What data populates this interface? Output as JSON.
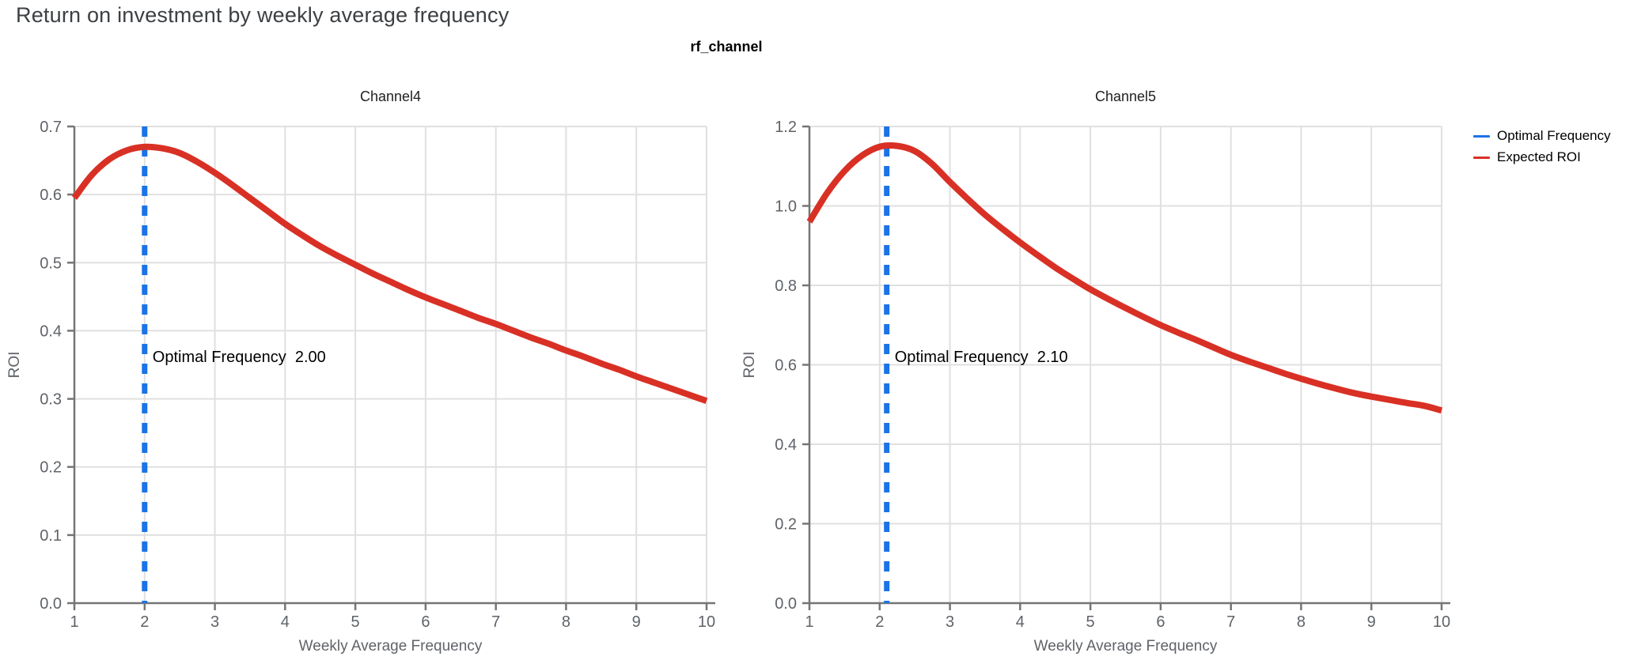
{
  "header": {
    "title": "Return on investment by weekly average frequency",
    "subtitle": "rf_channel"
  },
  "legend": {
    "items": [
      {
        "label": "Optimal Frequency",
        "color": "#1a73e8"
      },
      {
        "label": "Expected ROI",
        "color": "#d93025"
      }
    ]
  },
  "colors": {
    "optimal_line": "#1a73e8",
    "roi_curve": "#d93025",
    "grid": "#e0e0e0",
    "axis": "#757575",
    "tick_text": "#5f6368",
    "title_text": "#3c4043",
    "chart_text": "#202124",
    "annotation_text": "#000000"
  },
  "chart_data": [
    {
      "type": "line",
      "facet": "Channel4",
      "xlabel": "Weekly Average Frequency",
      "ylabel": "ROI",
      "xlim": [
        1,
        10
      ],
      "ylim": [
        0,
        0.7
      ],
      "xticks": [
        1,
        2,
        3,
        4,
        5,
        6,
        7,
        8,
        9,
        10
      ],
      "yticks": [
        0.0,
        0.1,
        0.2,
        0.3,
        0.4,
        0.5,
        0.6,
        0.7
      ],
      "grid": true,
      "optimal_frequency": 2.0,
      "annotation": {
        "label": "Optimal Frequency",
        "value": "2.00"
      },
      "series": [
        {
          "name": "Expected ROI",
          "x": [
            1,
            1.25,
            1.5,
            1.75,
            2,
            2.25,
            2.5,
            2.75,
            3,
            3.25,
            3.5,
            3.75,
            4,
            4.25,
            4.5,
            4.75,
            5,
            5.25,
            5.5,
            5.75,
            6,
            6.25,
            6.5,
            6.75,
            7,
            7.25,
            7.5,
            7.75,
            8,
            8.25,
            8.5,
            8.75,
            9,
            9.25,
            9.5,
            9.75,
            10
          ],
          "y": [
            0.595,
            0.629,
            0.652,
            0.665,
            0.67,
            0.668,
            0.661,
            0.648,
            0.632,
            0.614,
            0.595,
            0.576,
            0.557,
            0.54,
            0.524,
            0.51,
            0.497,
            0.484,
            0.472,
            0.46,
            0.449,
            0.439,
            0.429,
            0.419,
            0.41,
            0.4,
            0.39,
            0.381,
            0.371,
            0.362,
            0.352,
            0.343,
            0.333,
            0.324,
            0.315,
            0.306,
            0.297
          ]
        }
      ]
    },
    {
      "type": "line",
      "facet": "Channel5",
      "xlabel": "Weekly Average Frequency",
      "ylabel": "ROI",
      "xlim": [
        1,
        10
      ],
      "ylim": [
        0,
        1.2
      ],
      "xticks": [
        1,
        2,
        3,
        4,
        5,
        6,
        7,
        8,
        9,
        10
      ],
      "yticks": [
        0.0,
        0.2,
        0.4,
        0.6,
        0.8,
        1.0,
        1.2
      ],
      "grid": true,
      "optimal_frequency": 2.1,
      "annotation": {
        "label": "Optimal Frequency",
        "value": "2.10"
      },
      "series": [
        {
          "name": "Expected ROI",
          "x": [
            1,
            1.25,
            1.5,
            1.75,
            2,
            2.25,
            2.5,
            2.75,
            3,
            3.25,
            3.5,
            3.75,
            4,
            4.25,
            4.5,
            4.75,
            5,
            5.25,
            5.5,
            5.75,
            6,
            6.25,
            6.5,
            6.75,
            7,
            7.25,
            7.5,
            7.75,
            8,
            8.25,
            8.5,
            8.75,
            9,
            9.25,
            9.5,
            9.75,
            10
          ],
          "y": [
            0.96,
            1.032,
            1.088,
            1.127,
            1.149,
            1.151,
            1.138,
            1.105,
            1.06,
            1.018,
            0.978,
            0.942,
            0.908,
            0.876,
            0.845,
            0.817,
            0.79,
            0.766,
            0.743,
            0.721,
            0.7,
            0.681,
            0.663,
            0.644,
            0.625,
            0.609,
            0.594,
            0.579,
            0.565,
            0.552,
            0.54,
            0.529,
            0.52,
            0.512,
            0.504,
            0.497,
            0.485
          ]
        }
      ]
    }
  ]
}
